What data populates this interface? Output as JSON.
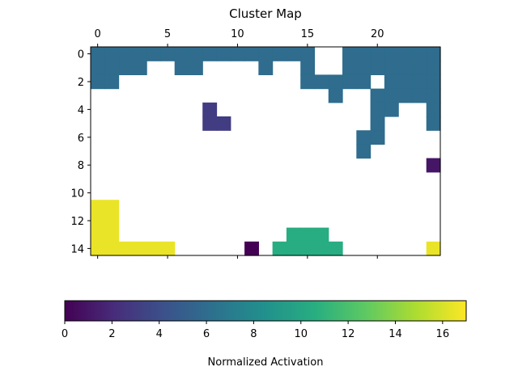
{
  "chart_data": {
    "type": "heatmap",
    "title": "Cluster Map",
    "rows": 15,
    "cols": 25,
    "x_ticks": [
      0,
      5,
      10,
      15,
      20
    ],
    "y_ticks": [
      0,
      2,
      4,
      6,
      8,
      10,
      12,
      14
    ],
    "colormap": "viridis",
    "colorbar": {
      "label": "Normalized Activation",
      "min": 0,
      "max": 17,
      "ticks": [
        0,
        2,
        4,
        6,
        8,
        10,
        12,
        14,
        16
      ],
      "orientation": "horizontal",
      "placement": "bottom"
    },
    "cells": [
      {
        "row": 0,
        "cols": [
          0,
          1,
          2,
          3,
          4,
          5,
          6,
          7,
          8,
          9,
          10,
          11,
          12,
          13,
          14,
          15,
          18,
          19,
          20,
          21,
          22,
          23,
          24
        ],
        "value": 6
      },
      {
        "row": 1,
        "cols": [
          0,
          1,
          2,
          3,
          6,
          7,
          12,
          15,
          18,
          19,
          20,
          21,
          22,
          23,
          24
        ],
        "value": 6
      },
      {
        "row": 2,
        "cols": [
          0,
          1,
          15,
          16,
          17,
          18,
          19,
          21,
          22,
          23,
          24
        ],
        "value": 6
      },
      {
        "row": 3,
        "cols": [
          17,
          20,
          21,
          22,
          23,
          24
        ],
        "value": 6
      },
      {
        "row": 4,
        "cols": [
          20,
          21,
          24
        ],
        "value": 6
      },
      {
        "row": 5,
        "cols": [
          20,
          24
        ],
        "value": 6
      },
      {
        "row": 6,
        "cols": [
          19,
          20
        ],
        "value": 6
      },
      {
        "row": 7,
        "cols": [
          19
        ],
        "value": 6
      },
      {
        "row": 4,
        "cols": [
          8
        ],
        "value": 3
      },
      {
        "row": 5,
        "cols": [
          8,
          9
        ],
        "value": 3
      },
      {
        "row": 8,
        "cols": [
          24
        ],
        "value": 1
      },
      {
        "row": 14,
        "cols": [
          11
        ],
        "value": 0
      },
      {
        "row": 11,
        "cols": [
          0,
          1
        ],
        "value": 16.5
      },
      {
        "row": 12,
        "cols": [
          0,
          1
        ],
        "value": 16.5
      },
      {
        "row": 13,
        "cols": [
          0,
          1
        ],
        "value": 16.5
      },
      {
        "row": 14,
        "cols": [
          0,
          1,
          2,
          3,
          4,
          5
        ],
        "value": 16.5
      },
      {
        "row": 14,
        "cols": [
          24
        ],
        "value": 16.5
      },
      {
        "row": 13,
        "cols": [
          14,
          15,
          16
        ],
        "value": 10.5
      },
      {
        "row": 14,
        "cols": [
          13,
          14,
          15,
          16,
          17
        ],
        "value": 10.5
      }
    ]
  }
}
